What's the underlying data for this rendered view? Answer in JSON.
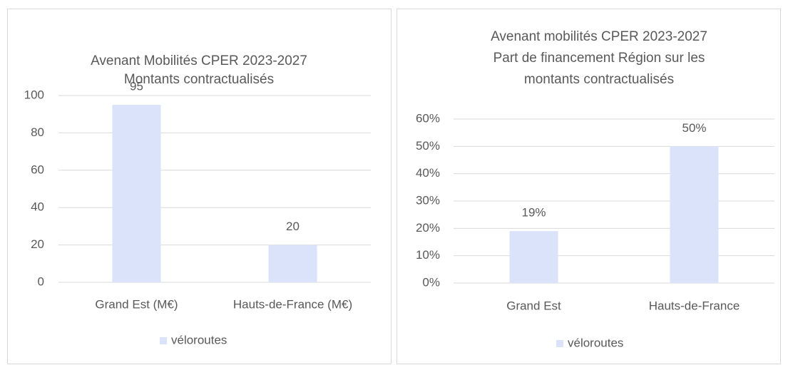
{
  "chart_data": [
    {
      "type": "bar",
      "title": [
        "Avenant Mobilités CPER 2023-2027",
        "Montants contractualisés"
      ],
      "categories": [
        "Grand Est (M€)",
        "Hauts-de-France (M€)"
      ],
      "series": [
        {
          "name": "véloroutes",
          "color": "#dae3f9",
          "values": [
            95,
            20
          ]
        }
      ],
      "ylim": [
        0,
        100
      ],
      "yticks": [
        0,
        20,
        40,
        60,
        80,
        100
      ],
      "grid": true,
      "legend": "bottom"
    },
    {
      "type": "bar",
      "title": [
        "Avenant mobilités CPER 2023-2027",
        "Part de financement Région sur les",
        "montants contractualisés"
      ],
      "categories": [
        "Grand Est",
        "Hauts-de-France"
      ],
      "series": [
        {
          "name": "véloroutes",
          "color": "#dae3f9",
          "values": [
            19,
            50
          ],
          "value_labels": [
            "19%",
            "50%"
          ]
        }
      ],
      "ylim": [
        0,
        60
      ],
      "yticks": [
        {
          "value": 0,
          "label": "0%"
        },
        {
          "value": 10,
          "label": "10%"
        },
        {
          "value": 20,
          "label": "20%"
        },
        {
          "value": 30,
          "label": "30%"
        },
        {
          "value": 40,
          "label": "40%"
        },
        {
          "value": 50,
          "label": "50%"
        },
        {
          "value": 60,
          "label": "60%"
        }
      ],
      "grid": true,
      "legend": "bottom"
    }
  ]
}
